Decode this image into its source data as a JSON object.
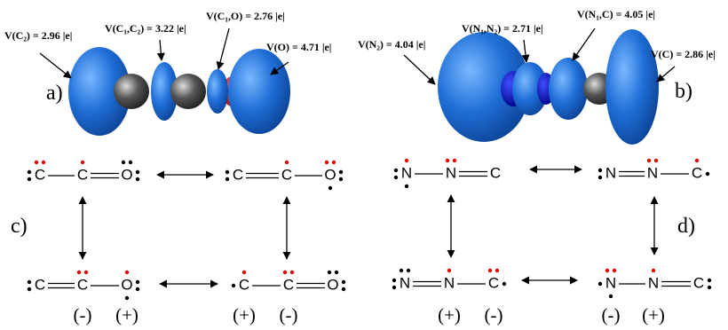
{
  "panel_a": {
    "label": "a)",
    "basins": [
      "V(C₂) = 2.96 |e|",
      "V(C₁,C₂) = 3.22 |e|",
      "V(C₁,O) = 2.76 |e|",
      "V(O) = 4.71 |e|"
    ]
  },
  "panel_b": {
    "label": "b)",
    "basins": [
      "V(N₂) = 4.04 |e|",
      "V(N₁,N₂) = 2.71 |e|",
      "V(N₁,C) = 4.05 |e|",
      "V(C) = 2.86 |e|"
    ]
  },
  "panel_c": {
    "label": "c)",
    "structures": [
      {
        "atoms": [
          "C",
          "C",
          "O"
        ]
      },
      {
        "atoms": [
          "C",
          "C",
          "O"
        ]
      },
      {
        "atoms": [
          "C",
          "C",
          "O"
        ],
        "charges": [
          "(-)",
          "(+)"
        ]
      },
      {
        "atoms": [
          "C",
          "C",
          "O"
        ],
        "charges": [
          "(+)",
          "(-)"
        ]
      }
    ]
  },
  "panel_d": {
    "label": "d)",
    "structures": [
      {
        "atoms": [
          "N",
          "N",
          "C"
        ]
      },
      {
        "atoms": [
          "N",
          "N",
          "C"
        ]
      },
      {
        "atoms": [
          "N",
          "N",
          "C"
        ],
        "charges": [
          "(+)",
          "(-)"
        ]
      },
      {
        "atoms": [
          "N",
          "N",
          "C"
        ],
        "charges": [
          "(-)",
          "(+)"
        ]
      }
    ]
  }
}
